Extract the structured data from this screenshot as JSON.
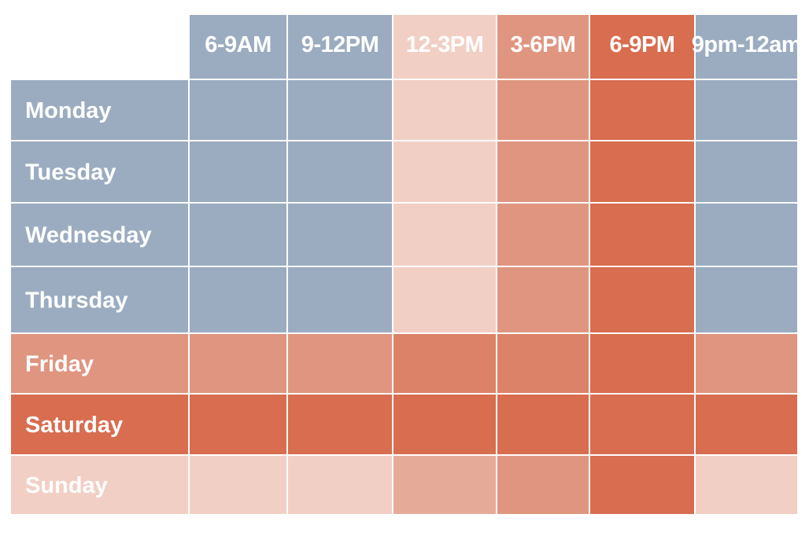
{
  "chart_data": {
    "type": "heatmap",
    "x_categories": [
      "6-9AM",
      "9-12PM",
      "12-3PM",
      "3-6PM",
      "6-9PM",
      "9pm-12am"
    ],
    "y_categories": [
      "Monday",
      "Tuesday",
      "Wednesday",
      "Thursday",
      "Friday",
      "Saturday",
      "Sunday"
    ],
    "values": [
      [
        0,
        0,
        1,
        2,
        3,
        0
      ],
      [
        0,
        0,
        1,
        2,
        3,
        0
      ],
      [
        0,
        0,
        1,
        2,
        3,
        0
      ],
      [
        0,
        0,
        1,
        2,
        3,
        0
      ],
      [
        2,
        2,
        2.5,
        2.5,
        3,
        2
      ],
      [
        3,
        3,
        3,
        3,
        3,
        3
      ],
      [
        1,
        1,
        1.5,
        2,
        3,
        1
      ]
    ],
    "header_levels": [
      0,
      0,
      1,
      2,
      3,
      0
    ],
    "row_header_levels": [
      0,
      0,
      0,
      0,
      2,
      3,
      1
    ],
    "color_scale": {
      "0": "#9bacc0",
      "1": "#f2cfc5",
      "1.5": "#e6aa99",
      "2": "#e09580",
      "2.5": "#dc8268",
      "3": "#d86d50"
    },
    "title": "",
    "xlabel": "",
    "ylabel": ""
  }
}
